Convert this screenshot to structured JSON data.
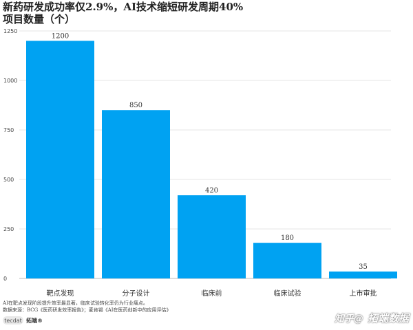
{
  "header": {
    "title": "新药研发成功率仅2.9%，AI技术缩短研发周期40%",
    "subtitle": "项目数量（个）"
  },
  "footer": {
    "note1": "AI在靶点发现阶段提升效率最显著，临床试验转化率仍为行业痛点。",
    "note2": "数据来源：BCG《医药研发效率报告》；麦肯锡《AI在医药创新中的应用评估》",
    "logo_text": "tecdat",
    "logo_cn": "拓端®",
    "watermark_1": "知乎@",
    "watermark_2": "拓端数据"
  },
  "colors": {
    "bar": "#00A2F2",
    "grid": "#e6e6e6",
    "axis": "#bbbbbb"
  },
  "chart_data": {
    "type": "bar",
    "title": "新药研发成功率仅2.9%，AI技术缩短研发周期40%",
    "ylabel": "项目数量（个）",
    "xlabel": "",
    "categories": [
      "靶点发现",
      "分子设计",
      "临床前",
      "临床试验",
      "上市审批"
    ],
    "values": [
      1200,
      850,
      420,
      180,
      35
    ],
    "ylim": [
      0,
      1250
    ],
    "yticks": [
      0,
      250,
      500,
      750,
      1000,
      1250
    ],
    "grid": true,
    "legend": "none"
  }
}
